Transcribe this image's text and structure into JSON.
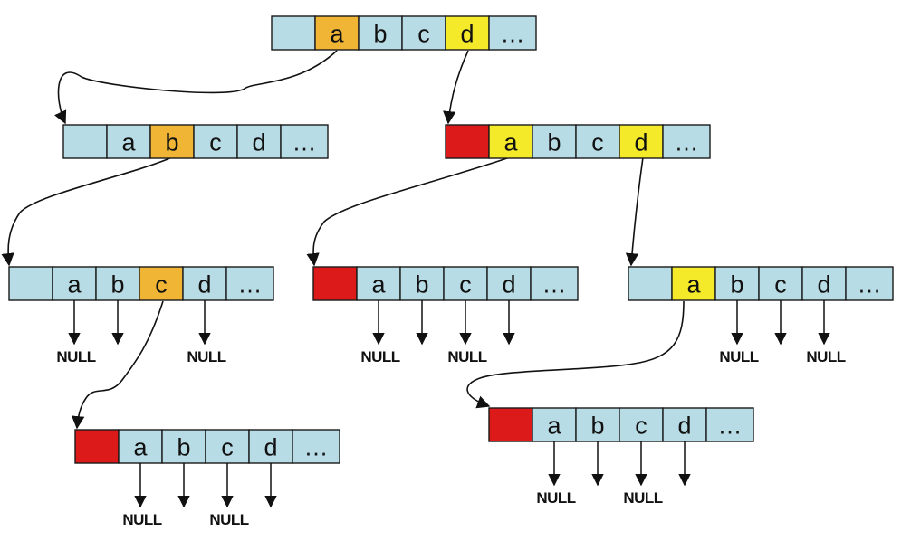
{
  "diagram": {
    "type": "trie-node-structure",
    "colors": {
      "cell_default": "#b8dce5",
      "cell_path": "#f0b535",
      "cell_child": "#f5ea2a",
      "cell_terminal": "#dd1a1a",
      "line": "#111111",
      "background": "#ffffff"
    },
    "ellipsis": "…",
    "null_label": "NULL",
    "nodes": [
      {
        "id": "root",
        "cells": [
          {
            "label": "",
            "style": "default"
          },
          {
            "label": "a",
            "style": "path"
          },
          {
            "label": "b",
            "style": "default"
          },
          {
            "label": "c",
            "style": "default"
          },
          {
            "label": "d",
            "style": "child"
          },
          {
            "label": "…",
            "style": "default"
          }
        ]
      },
      {
        "id": "node-a",
        "cells": [
          {
            "label": "",
            "style": "default"
          },
          {
            "label": "a",
            "style": "default"
          },
          {
            "label": "b",
            "style": "path"
          },
          {
            "label": "c",
            "style": "default"
          },
          {
            "label": "d",
            "style": "default"
          },
          {
            "label": "…",
            "style": "default"
          }
        ]
      },
      {
        "id": "node-d",
        "cells": [
          {
            "label": "",
            "style": "terminal"
          },
          {
            "label": "a",
            "style": "child"
          },
          {
            "label": "b",
            "style": "default"
          },
          {
            "label": "c",
            "style": "default"
          },
          {
            "label": "d",
            "style": "child"
          },
          {
            "label": "…",
            "style": "default"
          }
        ]
      },
      {
        "id": "node-ab",
        "cells": [
          {
            "label": "",
            "style": "default"
          },
          {
            "label": "a",
            "style": "default"
          },
          {
            "label": "b",
            "style": "default"
          },
          {
            "label": "c",
            "style": "path"
          },
          {
            "label": "d",
            "style": "default"
          },
          {
            "label": "…",
            "style": "default"
          }
        ]
      },
      {
        "id": "node-da",
        "cells": [
          {
            "label": "",
            "style": "terminal"
          },
          {
            "label": "a",
            "style": "default"
          },
          {
            "label": "b",
            "style": "default"
          },
          {
            "label": "c",
            "style": "default"
          },
          {
            "label": "d",
            "style": "default"
          },
          {
            "label": "…",
            "style": "default"
          }
        ]
      },
      {
        "id": "node-dd",
        "cells": [
          {
            "label": "",
            "style": "default"
          },
          {
            "label": "a",
            "style": "child"
          },
          {
            "label": "b",
            "style": "default"
          },
          {
            "label": "c",
            "style": "default"
          },
          {
            "label": "d",
            "style": "default"
          },
          {
            "label": "…",
            "style": "default"
          }
        ]
      },
      {
        "id": "node-abc",
        "cells": [
          {
            "label": "",
            "style": "terminal"
          },
          {
            "label": "a",
            "style": "default"
          },
          {
            "label": "b",
            "style": "default"
          },
          {
            "label": "c",
            "style": "default"
          },
          {
            "label": "d",
            "style": "default"
          },
          {
            "label": "…",
            "style": "default"
          }
        ]
      },
      {
        "id": "node-dda",
        "cells": [
          {
            "label": "",
            "style": "terminal"
          },
          {
            "label": "a",
            "style": "default"
          },
          {
            "label": "b",
            "style": "default"
          },
          {
            "label": "c",
            "style": "default"
          },
          {
            "label": "d",
            "style": "default"
          },
          {
            "label": "…",
            "style": "default"
          }
        ]
      }
    ],
    "edges": [
      {
        "from": "root",
        "cell": "a",
        "to": "node-a"
      },
      {
        "from": "root",
        "cell": "d",
        "to": "node-d"
      },
      {
        "from": "node-a",
        "cell": "b",
        "to": "node-ab"
      },
      {
        "from": "node-d",
        "cell": "a",
        "to": "node-da"
      },
      {
        "from": "node-d",
        "cell": "d",
        "to": "node-dd"
      },
      {
        "from": "node-ab",
        "cell": "c",
        "to": "node-abc"
      },
      {
        "from": "node-dd",
        "cell": "a",
        "to": "node-dda"
      }
    ],
    "pointers": [
      {
        "node": "node-ab",
        "cell": "a",
        "label": "NULL"
      },
      {
        "node": "node-ab",
        "cell": "b",
        "label": ""
      },
      {
        "node": "node-ab",
        "cell": "d",
        "label": "NULL"
      },
      {
        "node": "node-da",
        "cell": "a",
        "label": "NULL"
      },
      {
        "node": "node-da",
        "cell": "b",
        "label": ""
      },
      {
        "node": "node-da",
        "cell": "c",
        "label": "NULL"
      },
      {
        "node": "node-da",
        "cell": "d",
        "label": ""
      },
      {
        "node": "node-dd",
        "cell": "b",
        "label": "NULL"
      },
      {
        "node": "node-dd",
        "cell": "c",
        "label": ""
      },
      {
        "node": "node-dd",
        "cell": "d",
        "label": "NULL"
      },
      {
        "node": "node-abc",
        "cell": "a",
        "label": "NULL"
      },
      {
        "node": "node-abc",
        "cell": "b",
        "label": ""
      },
      {
        "node": "node-abc",
        "cell": "c",
        "label": "NULL"
      },
      {
        "node": "node-abc",
        "cell": "d",
        "label": ""
      },
      {
        "node": "node-dda",
        "cell": "a",
        "label": "NULL"
      },
      {
        "node": "node-dda",
        "cell": "b",
        "label": ""
      },
      {
        "node": "node-dda",
        "cell": "c",
        "label": "NULL"
      },
      {
        "node": "node-dda",
        "cell": "d",
        "label": ""
      }
    ]
  }
}
